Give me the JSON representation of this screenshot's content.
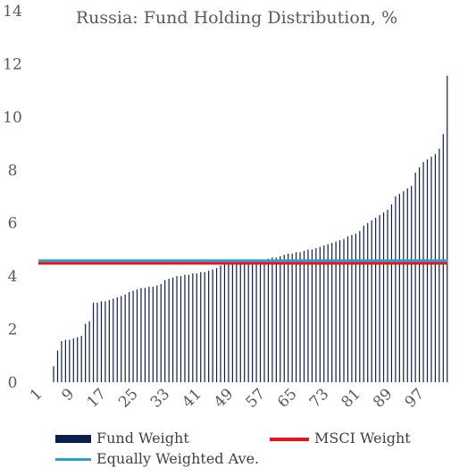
{
  "chart_data": {
    "type": "bar",
    "title": "Russia:  Fund Holding Distribution, %",
    "xlabel": "",
    "ylabel": "",
    "ylim": [
      0,
      14
    ],
    "yticks": [
      0,
      2,
      4,
      6,
      8,
      10,
      12,
      14
    ],
    "xtick_labels": [
      "1",
      "9",
      "17",
      "25",
      "33",
      "41",
      "49",
      "57",
      "65",
      "73",
      "81",
      "89",
      "97"
    ],
    "grid": false,
    "legend_position": "bottom",
    "series": [
      {
        "name": "Fund Weight",
        "type": "bar",
        "color": "#0b1f4d",
        "values": [
          0,
          0,
          0,
          0,
          0.6,
          1.2,
          1.55,
          1.6,
          1.6,
          1.65,
          1.7,
          1.75,
          2.2,
          2.3,
          3.0,
          3.0,
          3.05,
          3.05,
          3.1,
          3.15,
          3.2,
          3.25,
          3.3,
          3.4,
          3.45,
          3.5,
          3.55,
          3.55,
          3.6,
          3.6,
          3.65,
          3.7,
          3.85,
          3.9,
          3.95,
          4.0,
          4.0,
          4.05,
          4.05,
          4.1,
          4.1,
          4.15,
          4.15,
          4.2,
          4.25,
          4.3,
          4.4,
          4.45,
          4.5,
          4.5,
          4.5,
          4.5,
          4.55,
          4.55,
          4.55,
          4.55,
          4.6,
          4.6,
          4.65,
          4.7,
          4.7,
          4.75,
          4.8,
          4.85,
          4.85,
          4.9,
          4.9,
          4.95,
          5.0,
          5.0,
          5.05,
          5.1,
          5.15,
          5.2,
          5.25,
          5.3,
          5.35,
          5.4,
          5.5,
          5.55,
          5.6,
          5.7,
          5.9,
          6.0,
          6.1,
          6.2,
          6.3,
          6.4,
          6.5,
          6.7,
          7.0,
          7.1,
          7.2,
          7.3,
          7.4,
          7.9,
          8.1,
          8.3,
          8.4,
          8.5,
          8.6,
          8.8,
          9.35,
          11.55
        ]
      },
      {
        "name": "MSCI Weight",
        "type": "line",
        "color": "#e8141b",
        "value": 4.48
      },
      {
        "name": "Equally Weighted Ave.",
        "type": "line",
        "color": "#2b9fd0",
        "value": 4.58
      }
    ]
  }
}
